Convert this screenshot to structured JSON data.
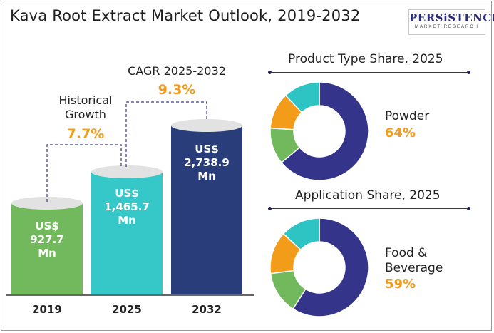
{
  "title": "Kava Root Extract Market Outlook, 2019-2032",
  "logo": {
    "main": "PERSiSTENCE",
    "sub": "MARKET RESEARCH"
  },
  "growth": {
    "historical_label_line1": "Historical",
    "historical_label_line2": "Growth",
    "historical_value": "7.7%",
    "cagr_label": "CAGR 2025-2032",
    "cagr_value": "9.3%"
  },
  "bars": [
    {
      "year": "2019",
      "line1": "US$",
      "line2": "927.7",
      "line3": "Mn"
    },
    {
      "year": "2025",
      "line1": "US$",
      "line2": "1,465.7",
      "line3": "Mn"
    },
    {
      "year": "2032",
      "line1": "US$",
      "line2": "2,738.9",
      "line3": "Mn"
    }
  ],
  "product_share": {
    "title": "Product Type Share, 2025",
    "label": "Powder",
    "pct": "64%"
  },
  "application_share": {
    "title": "Application Share, 2025",
    "label_line1": "Food &",
    "label_line2": "Beverage",
    "pct": "59%"
  },
  "colors": {
    "bar_2019": "#72b85c",
    "bar_2025": "#36c8c8",
    "bar_2032": "#283d7a",
    "bar_top": "#e2e2e2",
    "donut_main": "#34358a",
    "donut_green": "#72b85c",
    "donut_orange": "#f39c1a",
    "donut_teal": "#2ec4c4",
    "accent": "#f39c1a",
    "connector": "#3a3a8a"
  },
  "chart_data": [
    {
      "type": "bar",
      "categories": [
        "2019",
        "2025",
        "2032"
      ],
      "values": [
        927.7,
        1465.7,
        2738.9
      ],
      "title": "Kava Root Extract Market Outlook, 2019-2032",
      "ylabel": "US$ Mn",
      "annotations": [
        "Historical Growth 7.7%",
        "CAGR 2025-2032 9.3%"
      ]
    },
    {
      "type": "pie",
      "title": "Product Type Share, 2025",
      "values": [
        64,
        12,
        12,
        12
      ],
      "labels": [
        "Powder",
        "",
        "",
        ""
      ]
    },
    {
      "type": "pie",
      "title": "Application Share, 2025",
      "values": [
        59,
        14,
        14,
        13
      ],
      "labels": [
        "Food & Beverage",
        "",
        "",
        ""
      ]
    }
  ]
}
